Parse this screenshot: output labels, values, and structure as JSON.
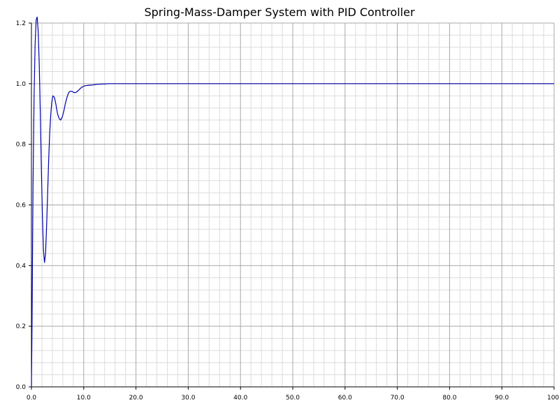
{
  "chart_data": {
    "type": "line",
    "title": "Spring-Mass-Damper System with PID Controller",
    "xlabel": "",
    "ylabel": "",
    "xlim": [
      0,
      100
    ],
    "ylim": [
      0,
      1.2
    ],
    "grid": true,
    "x_ticks": [
      "0.0",
      "10.0",
      "20.0",
      "30.0",
      "40.0",
      "50.0",
      "60.0",
      "70.0",
      "80.0",
      "90.0",
      "100."
    ],
    "y_ticks": [
      "0.0",
      "0.2",
      "0.4",
      "0.6",
      "0.8",
      "1.0",
      "1.2"
    ],
    "series": [
      {
        "color": "#0000aa",
        "x": [
          0,
          0.1,
          0.2,
          0.3,
          0.5,
          0.7,
          0.9,
          1.1,
          1.3,
          1.5,
          1.7,
          1.9,
          2.1,
          2.3,
          2.5,
          2.7,
          2.9,
          3.1,
          3.3,
          3.5,
          3.7,
          3.9,
          4.1,
          4.4,
          4.7,
          5.0,
          5.3,
          5.6,
          5.9,
          6.2,
          6.5,
          6.8,
          7.1,
          7.4,
          7.7,
          8.0,
          8.3,
          8.6,
          9.0,
          9.4,
          9.8,
          10.2,
          10.6,
          11.0,
          11.4,
          11.8,
          12.2,
          12.6,
          13.0,
          13.4,
          13.8,
          14.2,
          14.6,
          15.0,
          15.5,
          16.0,
          16.5,
          17.0,
          18.0,
          19.0,
          20.0,
          21.0,
          22.0,
          23.0,
          24.0,
          26.0,
          30.0,
          40.0,
          50.0,
          60.0,
          70.0,
          80.0,
          90.0,
          100.0
        ],
        "y": [
          0.0,
          0.18,
          0.42,
          0.66,
          0.95,
          1.13,
          1.21,
          1.22,
          1.17,
          1.06,
          0.9,
          0.72,
          0.56,
          0.45,
          0.41,
          0.44,
          0.53,
          0.64,
          0.75,
          0.84,
          0.9,
          0.94,
          0.96,
          0.955,
          0.93,
          0.9,
          0.885,
          0.88,
          0.89,
          0.91,
          0.935,
          0.955,
          0.97,
          0.975,
          0.975,
          0.972,
          0.97,
          0.972,
          0.978,
          0.985,
          0.99,
          0.993,
          0.994,
          0.995,
          0.995,
          0.996,
          0.997,
          0.998,
          0.998,
          0.999,
          0.999,
          0.999,
          1.0,
          1.0,
          1.0,
          1.0,
          1.0,
          1.0,
          1.0,
          1.0,
          1.0,
          1.0,
          1.0,
          1.0,
          1.0,
          1.0,
          1.0,
          1.0,
          1.0,
          1.0,
          1.0,
          1.0,
          1.0,
          1.0
        ]
      }
    ]
  }
}
